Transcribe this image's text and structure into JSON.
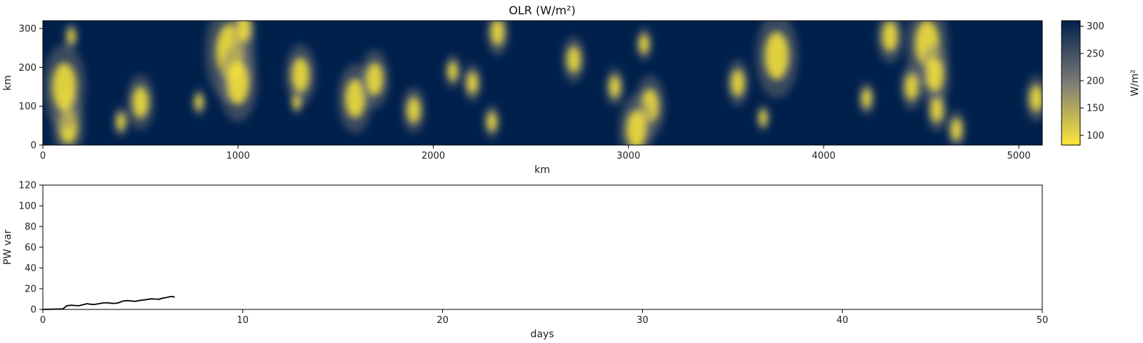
{
  "chart_data": [
    {
      "type": "heatmap",
      "title": "OLR (W/m²)",
      "xlabel": "km",
      "ylabel": "km",
      "xlim": [
        0,
        5120
      ],
      "ylim": [
        0,
        320
      ],
      "xticks": [
        "0",
        "1000",
        "2000",
        "3000",
        "4000",
        "5000"
      ],
      "yticks": [
        "0",
        "100",
        "200",
        "300"
      ],
      "grid": false,
      "colormap": "cividis_r",
      "colorbar": {
        "label": "W/m²",
        "range": [
          82,
          310
        ],
        "ticks": [
          "100",
          "150",
          "200",
          "250",
          "300"
        ],
        "color_low": "#fde737",
        "color_mid": "#7c7b78",
        "color_high": "#00204c"
      },
      "cloud_clusters": [
        {
          "x": 130,
          "y": 50,
          "r": 42
        },
        {
          "x": 110,
          "y": 150,
          "r": 55
        },
        {
          "x": 145,
          "y": 280,
          "r": 18
        },
        {
          "x": 500,
          "y": 110,
          "r": 36
        },
        {
          "x": 400,
          "y": 60,
          "r": 20
        },
        {
          "x": 800,
          "y": 110,
          "r": 18
        },
        {
          "x": 960,
          "y": 240,
          "r": 65
        },
        {
          "x": 1000,
          "y": 160,
          "r": 50
        },
        {
          "x": 1030,
          "y": 300,
          "r": 30
        },
        {
          "x": 1320,
          "y": 180,
          "r": 40
        },
        {
          "x": 1300,
          "y": 110,
          "r": 16
        },
        {
          "x": 1600,
          "y": 120,
          "r": 45
        },
        {
          "x": 1700,
          "y": 170,
          "r": 38
        },
        {
          "x": 1900,
          "y": 90,
          "r": 30
        },
        {
          "x": 2100,
          "y": 190,
          "r": 22
        },
        {
          "x": 2200,
          "y": 160,
          "r": 25
        },
        {
          "x": 2330,
          "y": 290,
          "r": 30
        },
        {
          "x": 2300,
          "y": 60,
          "r": 22
        },
        {
          "x": 2720,
          "y": 220,
          "r": 30
        },
        {
          "x": 2930,
          "y": 150,
          "r": 25
        },
        {
          "x": 3080,
          "y": 260,
          "r": 22
        },
        {
          "x": 3110,
          "y": 100,
          "r": 40
        },
        {
          "x": 3040,
          "y": 40,
          "r": 45
        },
        {
          "x": 3560,
          "y": 160,
          "r": 30
        },
        {
          "x": 3760,
          "y": 230,
          "r": 55
        },
        {
          "x": 3690,
          "y": 70,
          "r": 18
        },
        {
          "x": 4220,
          "y": 120,
          "r": 22
        },
        {
          "x": 4340,
          "y": 280,
          "r": 35
        },
        {
          "x": 4530,
          "y": 260,
          "r": 55
        },
        {
          "x": 4570,
          "y": 180,
          "r": 40
        },
        {
          "x": 4450,
          "y": 150,
          "r": 30
        },
        {
          "x": 4580,
          "y": 90,
          "r": 28
        },
        {
          "x": 4680,
          "y": 40,
          "r": 25
        },
        {
          "x": 5090,
          "y": 120,
          "r": 30
        }
      ]
    },
    {
      "type": "line",
      "title": "",
      "xlabel": "days",
      "ylabel": "PW var",
      "xlim": [
        0,
        50
      ],
      "ylim": [
        0,
        120
      ],
      "xticks": [
        "0",
        "10",
        "20",
        "30",
        "40",
        "50"
      ],
      "yticks": [
        "0",
        "20",
        "40",
        "60",
        "80",
        "100",
        "120"
      ],
      "grid": false,
      "series": [
        {
          "color": "#000000",
          "x": [
            0,
            0.5,
            1.0,
            1.1,
            1.2,
            1.4,
            1.6,
            1.8,
            2.0,
            2.2,
            2.4,
            2.6,
            2.8,
            3.0,
            3.2,
            3.4,
            3.6,
            3.8,
            4.0,
            4.2,
            4.4,
            4.6,
            4.8,
            5.0,
            5.2,
            5.4,
            5.6,
            5.8,
            6.0,
            6.2,
            6.4,
            6.6
          ],
          "y": [
            0,
            0.2,
            0.5,
            2.0,
            3.5,
            4.0,
            3.8,
            3.5,
            4.5,
            5.5,
            5.0,
            4.8,
            5.5,
            6.2,
            6.5,
            6.0,
            5.8,
            6.5,
            8.0,
            8.5,
            8.2,
            7.8,
            8.5,
            9.0,
            9.5,
            10.2,
            10.0,
            9.8,
            10.8,
            11.5,
            12.5,
            12.0
          ]
        }
      ]
    }
  ]
}
